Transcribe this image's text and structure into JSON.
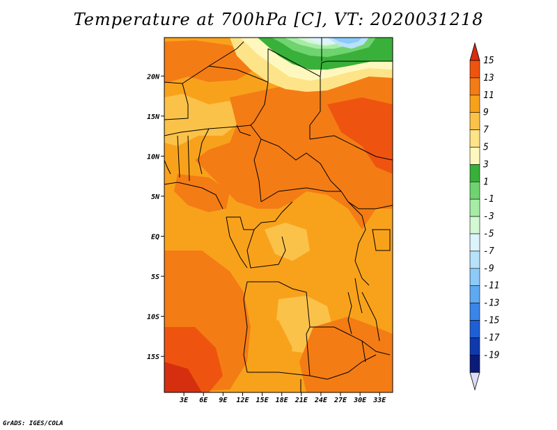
{
  "title": "Temperature at 700hPa [C], VT: 2020031218",
  "footer": "GrADS: IGES/COLA",
  "map": {
    "lat_range": [
      -19.5,
      24.8
    ],
    "lon_range": [
      0,
      35
    ],
    "lat_ticks": [
      {
        "value": 20,
        "label": "20N"
      },
      {
        "value": 15,
        "label": "15N"
      },
      {
        "value": 10,
        "label": "10N"
      },
      {
        "value": 5,
        "label": "5N"
      },
      {
        "value": 0,
        "label": "EQ"
      },
      {
        "value": -5,
        "label": "5S"
      },
      {
        "value": -10,
        "label": "10S"
      },
      {
        "value": -15,
        "label": "15S"
      }
    ],
    "lon_ticks": [
      {
        "value": 3,
        "label": "3E"
      },
      {
        "value": 6,
        "label": "6E"
      },
      {
        "value": 9,
        "label": "9E"
      },
      {
        "value": 12,
        "label": "12E"
      },
      {
        "value": 15,
        "label": "15E"
      },
      {
        "value": 18,
        "label": "18E"
      },
      {
        "value": 21,
        "label": "21E"
      },
      {
        "value": 24,
        "label": "24E"
      },
      {
        "value": 27,
        "label": "27E"
      },
      {
        "value": 30,
        "label": "30E"
      },
      {
        "value": 33,
        "label": "33E"
      }
    ]
  },
  "colorbar": {
    "levels": [
      "15",
      "13",
      "11",
      "9",
      "7",
      "5",
      "3",
      "1",
      "-1",
      "-3",
      "-5",
      "-7",
      "-9",
      "-11",
      "-13",
      "-15",
      "-17",
      "-19"
    ],
    "colors": [
      "#d62f10",
      "#ee5410",
      "#f47c14",
      "#f8a21c",
      "#fbc24a",
      "#fde488",
      "#fff8be",
      "#39b039",
      "#6fd36f",
      "#a6eca6",
      "#d4f7d4",
      "#dcf4fb",
      "#b8e2fb",
      "#8ccaf8",
      "#5ea9f2",
      "#3a85e8",
      "#1e5fd6",
      "#0f3aad",
      "#0b1b78"
    ],
    "top_color": "#d62f10",
    "bottom_color": "#dcdcf5"
  }
}
